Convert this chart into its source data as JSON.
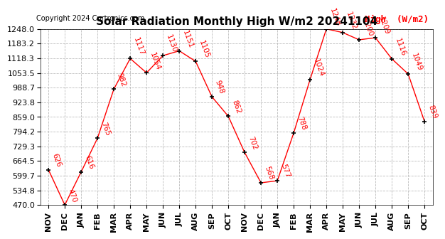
{
  "title": "Solar Radiation Monthly High W/m2 20241104",
  "copyright": "Copyright 2024 Curtronics.com",
  "legend_label": "High  (W/m2)",
  "months": [
    "NOV",
    "DEC",
    "JAN",
    "FEB",
    "MAR",
    "APR",
    "MAY",
    "JUN",
    "JUL",
    "AUG",
    "SEP",
    "OCT",
    "NOV",
    "DEC",
    "JAN",
    "FEB",
    "MAR",
    "APR",
    "MAY",
    "JUN",
    "JUL",
    "AUG",
    "SEP",
    "OCT"
  ],
  "values": [
    626,
    470,
    616,
    765,
    982,
    1117,
    1054,
    1130,
    1151,
    1105,
    948,
    862,
    702,
    568,
    577,
    788,
    1024,
    1248,
    1232,
    1200,
    1209,
    1116,
    1049,
    839
  ],
  "ylim": [
    470.0,
    1248.0
  ],
  "yticks": [
    470.0,
    534.8,
    599.7,
    664.5,
    729.3,
    794.2,
    859.0,
    923.8,
    988.7,
    1053.5,
    1118.3,
    1183.2,
    1248.0
  ],
  "line_color": "red",
  "marker_color": "black",
  "bg_color": "white",
  "grid_color": "#bbbbbb",
  "title_fontsize": 11,
  "tick_fontsize": 8,
  "annotation_fontsize": 7.5,
  "annotation_color": "red",
  "annotation_rotation": -70,
  "legend_fontsize": 9,
  "copyright_fontsize": 7
}
